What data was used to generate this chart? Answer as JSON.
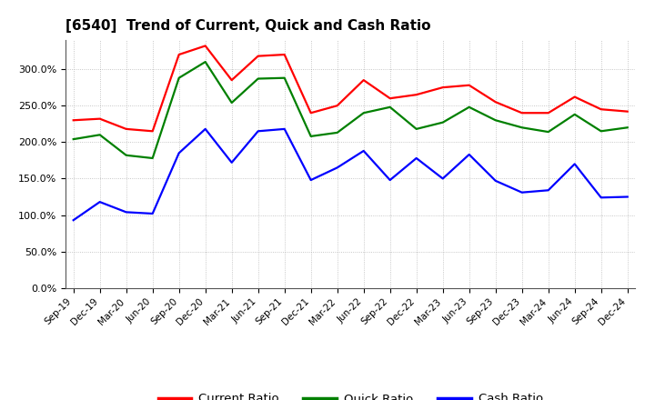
{
  "title": "[6540]  Trend of Current, Quick and Cash Ratio",
  "labels": [
    "Sep-19",
    "Dec-19",
    "Mar-20",
    "Jun-20",
    "Sep-20",
    "Dec-20",
    "Mar-21",
    "Jun-21",
    "Sep-21",
    "Dec-21",
    "Mar-22",
    "Jun-22",
    "Sep-22",
    "Dec-22",
    "Mar-23",
    "Jun-23",
    "Sep-23",
    "Dec-23",
    "Mar-24",
    "Jun-24",
    "Sep-24",
    "Dec-24"
  ],
  "current_ratio": [
    230,
    232,
    218,
    215,
    320,
    332,
    285,
    318,
    320,
    240,
    250,
    285,
    260,
    265,
    275,
    278,
    255,
    240,
    240,
    262,
    245,
    242
  ],
  "quick_ratio": [
    204,
    210,
    182,
    178,
    288,
    310,
    254,
    287,
    288,
    208,
    213,
    240,
    248,
    218,
    227,
    248,
    230,
    220,
    214,
    238,
    215,
    220
  ],
  "cash_ratio": [
    93,
    118,
    104,
    102,
    185,
    218,
    172,
    215,
    218,
    148,
    165,
    188,
    148,
    178,
    150,
    183,
    147,
    131,
    134,
    170,
    124,
    125
  ],
  "current_color": "#FF0000",
  "quick_color": "#008000",
  "cash_color": "#0000FF",
  "ylim": [
    0,
    340
  ],
  "yticks": [
    0,
    50,
    100,
    150,
    200,
    250,
    300
  ],
  "bg_color": "#ffffff",
  "grid_color": "#999999"
}
